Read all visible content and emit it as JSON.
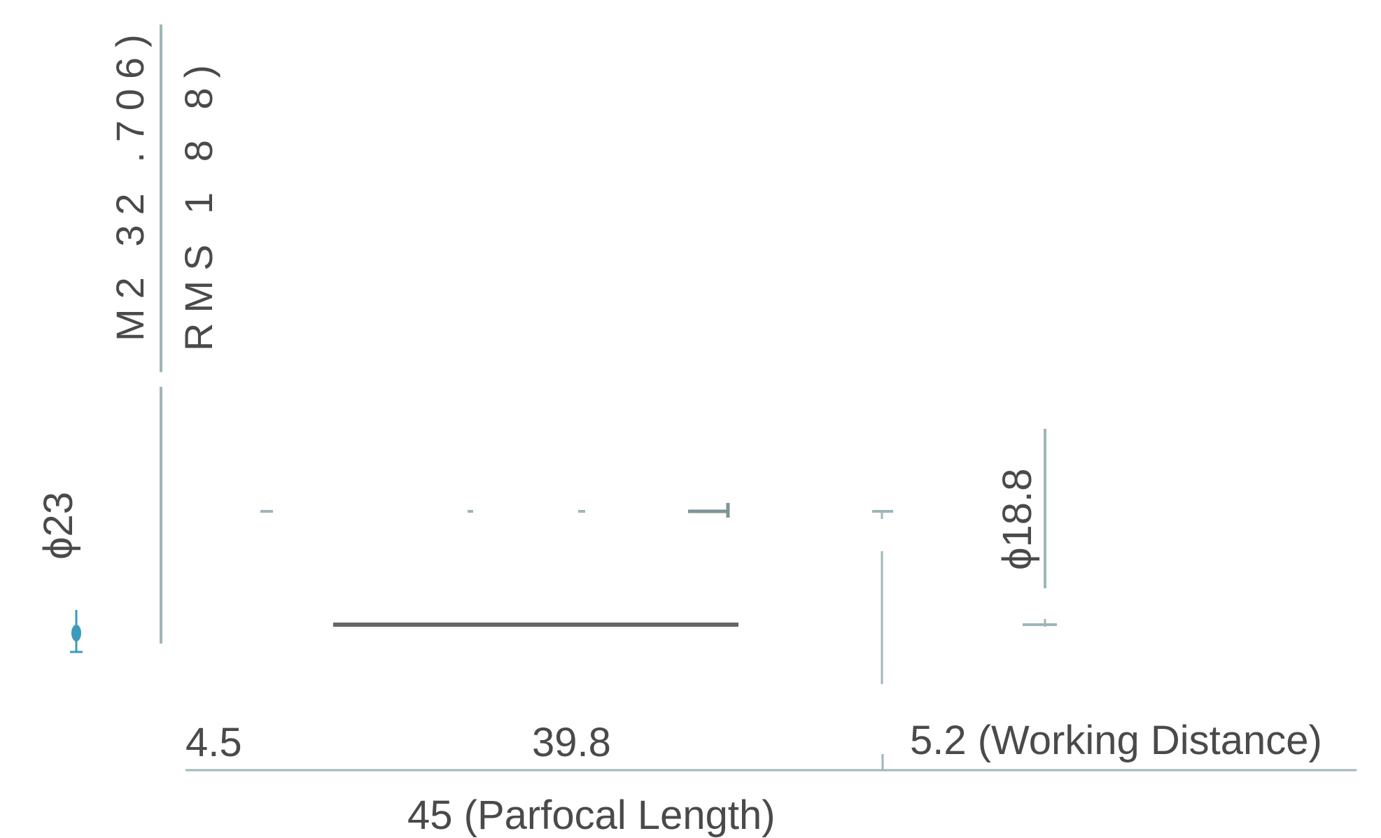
{
  "thread_spec": {
    "line1": "M2 32 .706)",
    "line2": "RMS 1 8 8)"
  },
  "diameters": {
    "body": "ϕ23",
    "tip": "ϕ18.8"
  },
  "lengths": {
    "thread_length": "4.5",
    "body_length": "39.8",
    "working_distance": "5.2 (Working Distance)",
    "parfocal_length": "45 (Parfocal Length)"
  },
  "colors": {
    "dimension_line": "#9fb6b8",
    "text": "#4a4a4a",
    "bar": "#666666",
    "accent": "#3a9bbd"
  }
}
